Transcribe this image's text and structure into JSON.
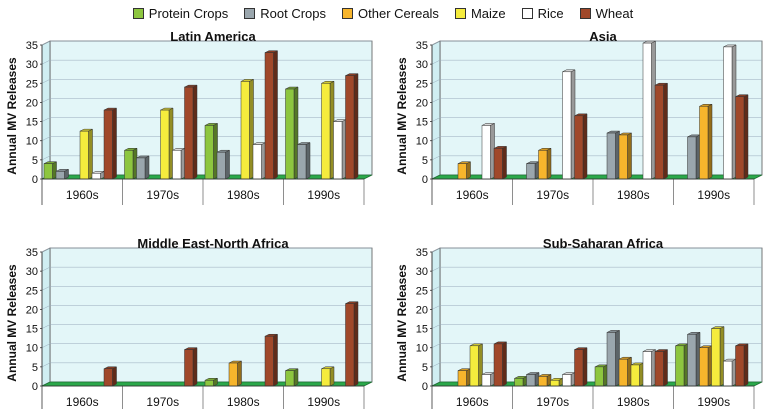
{
  "legend": [
    {
      "name": "Protein Crops",
      "color": "#8dc63f"
    },
    {
      "name": "Root Crops",
      "color": "#9aa6ad"
    },
    {
      "name": "Other Cereals",
      "color": "#f7b52c"
    },
    {
      "name": "Maize",
      "color": "#f5ec3d"
    },
    {
      "name": "Rice",
      "color": "#ffffff"
    },
    {
      "name": "Wheat",
      "color": "#a0482a"
    }
  ],
  "chart_data": [
    {
      "type": "bar",
      "title": "Latin America",
      "ylabel": "Annual MV Releases",
      "xlabel": "",
      "ylim": [
        0,
        35
      ],
      "yticks": [
        "0",
        "5",
        "10",
        "15",
        "20",
        "25",
        "30",
        "35"
      ],
      "categories": [
        "1960s",
        "1970s",
        "1980s",
        "1990s"
      ],
      "series": [
        {
          "name": "Protein Crops",
          "values": [
            4,
            7.5,
            14,
            23.5
          ]
        },
        {
          "name": "Root Crops",
          "values": [
            2,
            5.5,
            7,
            9
          ]
        },
        {
          "name": "Other Cereals",
          "values": [
            0,
            0,
            0,
            0
          ]
        },
        {
          "name": "Maize",
          "values": [
            12.5,
            18,
            25.5,
            25
          ]
        },
        {
          "name": "Rice",
          "values": [
            1.5,
            7.5,
            9,
            15
          ]
        },
        {
          "name": "Wheat",
          "values": [
            18,
            24,
            33,
            27
          ]
        }
      ]
    },
    {
      "type": "bar",
      "title": "Asia",
      "ylabel": "Annual MV Releases",
      "xlabel": "",
      "ylim": [
        0,
        35
      ],
      "yticks": [
        "0",
        "5",
        "10",
        "15",
        "20",
        "25",
        "30",
        "35"
      ],
      "categories": [
        "1960s",
        "1970s",
        "1980s",
        "1990s"
      ],
      "series": [
        {
          "name": "Protein Crops",
          "values": [
            0,
            0,
            0,
            0
          ]
        },
        {
          "name": "Root Crops",
          "values": [
            0,
            4,
            12,
            11
          ]
        },
        {
          "name": "Other Cereals",
          "values": [
            4,
            7.5,
            11.5,
            19
          ]
        },
        {
          "name": "Maize",
          "values": [
            0,
            0,
            0,
            0
          ]
        },
        {
          "name": "Rice",
          "values": [
            14,
            28,
            35.5,
            34.5
          ]
        },
        {
          "name": "Wheat",
          "values": [
            8,
            16.5,
            24.5,
            21.5
          ]
        }
      ]
    },
    {
      "type": "bar",
      "title": "Middle East-North Africa",
      "ylabel": "Annual MV Releases",
      "xlabel": "",
      "ylim": [
        0,
        35
      ],
      "yticks": [
        "0",
        "5",
        "10",
        "15",
        "20",
        "25",
        "30",
        "35"
      ],
      "categories": [
        "1960s",
        "1970s",
        "1980s",
        "1990s"
      ],
      "series": [
        {
          "name": "Protein Crops",
          "values": [
            0,
            0,
            1.5,
            4
          ]
        },
        {
          "name": "Root Crops",
          "values": [
            0,
            0,
            0,
            0
          ]
        },
        {
          "name": "Other Cereals",
          "values": [
            0,
            0,
            6,
            0
          ]
        },
        {
          "name": "Maize",
          "values": [
            0,
            0,
            0,
            4.5
          ]
        },
        {
          "name": "Rice",
          "values": [
            0,
            0,
            0,
            0
          ]
        },
        {
          "name": "Wheat",
          "values": [
            4.5,
            9.5,
            13,
            21.5
          ]
        }
      ]
    },
    {
      "type": "bar",
      "title": "Sub-Saharan Africa",
      "ylabel": "Annual MV Releases",
      "xlabel": "",
      "ylim": [
        0,
        35
      ],
      "yticks": [
        "0",
        "5",
        "10",
        "15",
        "20",
        "25",
        "30",
        "35"
      ],
      "categories": [
        "1960s",
        "1970s",
        "1980s",
        "1990s"
      ],
      "series": [
        {
          "name": "Protein Crops",
          "values": [
            0,
            2,
            5,
            10.5
          ]
        },
        {
          "name": "Root Crops",
          "values": [
            0,
            3,
            14,
            13.5
          ]
        },
        {
          "name": "Other Cereals",
          "values": [
            4,
            2.5,
            7,
            10
          ]
        },
        {
          "name": "Maize",
          "values": [
            10.5,
            1.5,
            5.5,
            15
          ]
        },
        {
          "name": "Rice",
          "values": [
            3,
            3,
            9,
            6.5
          ]
        },
        {
          "name": "Wheat",
          "values": [
            11,
            9.5,
            9,
            10.5
          ]
        }
      ]
    }
  ]
}
